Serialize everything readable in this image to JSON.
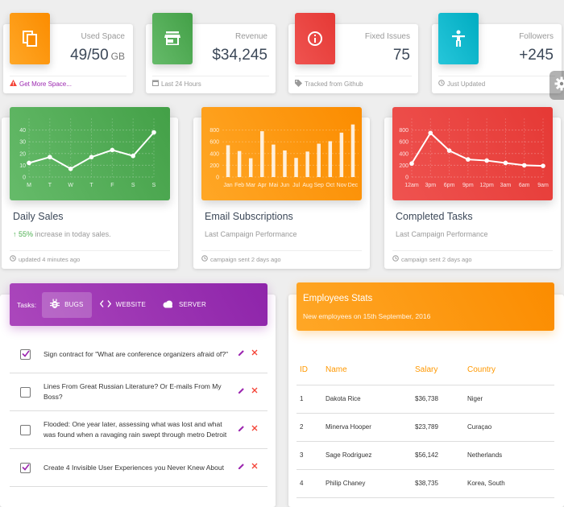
{
  "stats": [
    {
      "category": "Used Space",
      "value": "49/50",
      "unit": "GB",
      "footer": "Get More Space...",
      "footer_icon": "warning-icon",
      "color": "#fb8c00",
      "icon": "copy-icon"
    },
    {
      "category": "Revenue",
      "value": "$34,245",
      "unit": "",
      "footer": "Last 24 Hours",
      "footer_icon": "calendar-icon",
      "color": "#43a047",
      "icon": "store-icon"
    },
    {
      "category": "Fixed Issues",
      "value": "75",
      "unit": "",
      "footer": "Tracked from Github",
      "footer_icon": "tag-icon",
      "color": "#e53935",
      "icon": "info-icon"
    },
    {
      "category": "Followers",
      "value": "+245",
      "unit": "",
      "footer": "Just Updated",
      "footer_icon": "update-icon",
      "color": "#00acc1",
      "icon": "accessibility-icon"
    }
  ],
  "charts": [
    {
      "title": "Daily Sales",
      "highlight": "55%",
      "category_rest": " increase in today sales.",
      "footer": "updated 4 minutes ago",
      "color": "#43a047"
    },
    {
      "title": "Email Subscriptions",
      "category": "Last Campaign Performance",
      "footer": "campaign sent 2 days ago",
      "color": "#fb8c00"
    },
    {
      "title": "Completed Tasks",
      "category": "Last Campaign Performance",
      "footer": "campaign sent 2 days ago",
      "color": "#e53935"
    }
  ],
  "chart_data": [
    {
      "type": "line",
      "categories": [
        "M",
        "T",
        "W",
        "T",
        "F",
        "S",
        "S"
      ],
      "values": [
        12,
        17,
        7,
        17,
        23,
        18,
        38
      ],
      "ylim": [
        0,
        50
      ],
      "yticks": [
        0,
        10,
        20,
        30,
        40
      ]
    },
    {
      "type": "bar",
      "categories": [
        "Jan",
        "Feb",
        "Mar",
        "Apr",
        "Mai",
        "Jun",
        "Jul",
        "Aug",
        "Sep",
        "Oct",
        "Nov",
        "Dec"
      ],
      "values": [
        542,
        443,
        320,
        780,
        553,
        453,
        326,
        434,
        568,
        610,
        756,
        895
      ],
      "ylim": [
        0,
        1000
      ],
      "yticks": [
        0,
        200,
        400,
        600,
        800
      ]
    },
    {
      "type": "line",
      "categories": [
        "12am",
        "3pm",
        "6pm",
        "9pm",
        "12pm",
        "3am",
        "6am",
        "9am"
      ],
      "values": [
        230,
        750,
        450,
        300,
        280,
        240,
        200,
        190
      ],
      "ylim": [
        0,
        1000
      ],
      "yticks": [
        0,
        200,
        400,
        600,
        800
      ]
    }
  ],
  "tasks": {
    "label": "Tasks:",
    "tabs": [
      {
        "label": "BUGS",
        "icon": "bug-icon",
        "active": true
      },
      {
        "label": "WEBSITE",
        "icon": "code-icon",
        "active": false
      },
      {
        "label": "SERVER",
        "icon": "cloud-icon",
        "active": false
      }
    ],
    "items": [
      {
        "text": "Sign contract for \"What are conference organizers afraid of?\"",
        "checked": true
      },
      {
        "text": "Lines From Great Russian Literature? Or E-mails From My Boss?",
        "checked": false
      },
      {
        "text": "Flooded: One year later, assessing what was lost and what was found when a ravaging rain swept through metro Detroit",
        "checked": false
      },
      {
        "text": "Create 4 Invisible User Experiences you Never Knew About",
        "checked": true
      }
    ]
  },
  "employees": {
    "title": "Employees Stats",
    "subtitle": "New employees on 15th September, 2016",
    "columns": [
      "ID",
      "Name",
      "Salary",
      "Country"
    ],
    "rows": [
      [
        "1",
        "Dakota Rice",
        "$36,738",
        "Niger"
      ],
      [
        "2",
        "Minerva Hooper",
        "$23,789",
        "Curaçao"
      ],
      [
        "3",
        "Sage Rodriguez",
        "$56,142",
        "Netherlands"
      ],
      [
        "4",
        "Philip Chaney",
        "$38,735",
        "Korea, South"
      ]
    ]
  }
}
